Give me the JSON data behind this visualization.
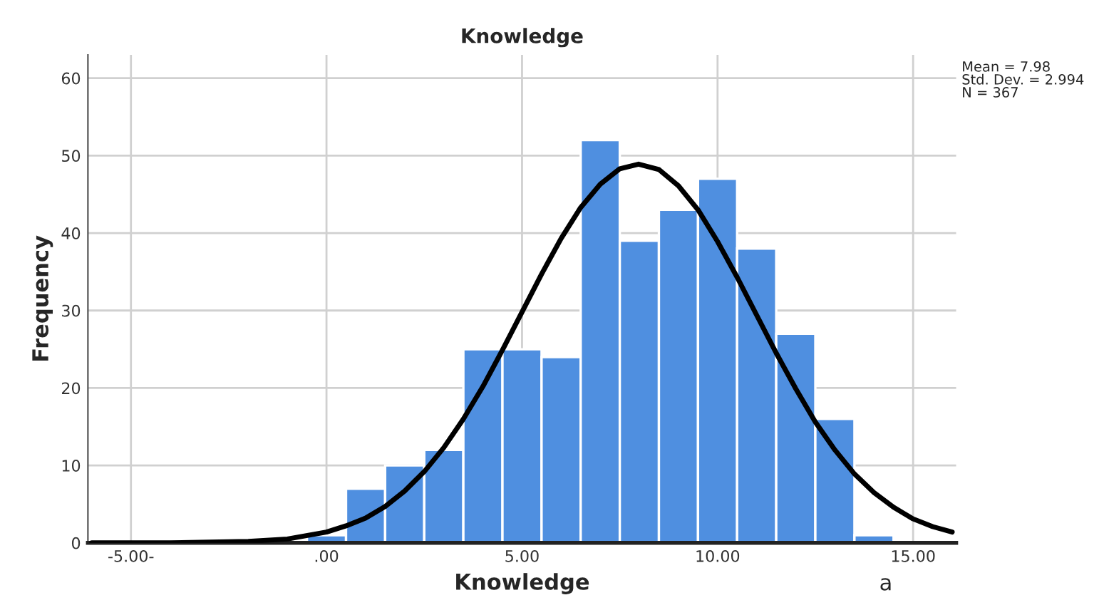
{
  "chart_data": {
    "type": "histogram",
    "title": "Knowledge",
    "xlabel": "Knowledge",
    "ylabel": "Frequency",
    "series": [
      {
        "color": "#4f8fe0",
        "bins": [
          -0.5,
          0.5,
          1.5,
          2.5,
          3.5,
          4.5,
          5.5,
          6.5,
          7.5,
          8.5,
          9.5,
          10.5,
          11.5,
          12.5,
          13.5,
          14.5
        ],
        "values": [
          1,
          7,
          10,
          12,
          25,
          25,
          24,
          52,
          39,
          43,
          47,
          38,
          27,
          16,
          1
        ]
      },
      {
        "type": "line",
        "color": "#000000",
        "x": [
          -6,
          -4,
          -2,
          -1,
          0,
          0.5,
          1,
          1.5,
          2,
          2.5,
          3,
          3.5,
          4,
          4.5,
          5,
          5.5,
          6,
          6.5,
          7,
          7.5,
          7.98,
          8.5,
          9,
          9.5,
          10,
          10.5,
          11,
          11.5,
          12,
          12.5,
          13,
          13.5,
          14,
          14.5,
          15,
          15.5,
          16
        ],
        "values": [
          0.0,
          0.0,
          0.2,
          0.5,
          1.4,
          2.2,
          3.2,
          4.7,
          6.7,
          9.2,
          12.3,
          16.0,
          20.2,
          24.9,
          29.8,
          34.7,
          39.3,
          43.3,
          46.3,
          48.3,
          48.9,
          48.2,
          46.1,
          43.0,
          38.9,
          34.3,
          29.4,
          24.5,
          19.9,
          15.6,
          12.0,
          8.9,
          6.5,
          4.6,
          3.1,
          2.1,
          1.4
        ]
      }
    ],
    "xlim": [
      -6.1,
      16.1
    ],
    "xticks": [
      {
        "value": -5,
        "label": "-5.00-"
      },
      {
        "value": 0,
        "label": ".00"
      },
      {
        "value": 5,
        "label": "5.00"
      },
      {
        "value": 10,
        "label": "10.00"
      },
      {
        "value": 15,
        "label": "15.00"
      }
    ],
    "ylim": [
      0,
      63
    ],
    "yticks": [
      0,
      10,
      20,
      30,
      40,
      50,
      60
    ],
    "grid": true,
    "annotations": [
      "Mean = 7.98\nStd. Dev. = 2.994\nN = 367",
      "a"
    ]
  }
}
